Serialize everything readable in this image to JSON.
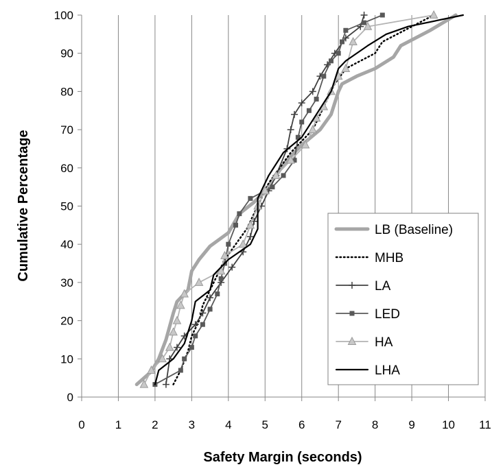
{
  "chart_data": {
    "type": "line",
    "title": "",
    "xlabel": "Safety Margin (seconds)",
    "ylabel": "Cumulative Percentage",
    "xlim": [
      0,
      11
    ],
    "ylim": [
      0,
      100
    ],
    "xticks": [
      0,
      1,
      2,
      3,
      4,
      5,
      6,
      7,
      8,
      9,
      10,
      11
    ],
    "yticks": [
      0,
      10,
      20,
      30,
      40,
      50,
      60,
      70,
      80,
      90,
      100
    ],
    "grid": "vertical",
    "legend_position": "bottom-right",
    "series": [
      {
        "name": "LB (Baseline)",
        "color": "#a6a6a6",
        "style": "thick",
        "marker": "none",
        "points": [
          [
            1.5,
            3.3
          ],
          [
            1.9,
            6.7
          ],
          [
            2.1,
            10
          ],
          [
            2.3,
            15
          ],
          [
            2.5,
            22
          ],
          [
            2.6,
            25
          ],
          [
            2.9,
            28
          ],
          [
            3.0,
            33
          ],
          [
            3.2,
            36
          ],
          [
            3.5,
            39.5
          ],
          [
            4.0,
            43
          ],
          [
            4.3,
            48
          ],
          [
            4.7,
            51
          ],
          [
            5.0,
            54
          ],
          [
            5.3,
            58
          ],
          [
            5.6,
            62
          ],
          [
            6.0,
            66
          ],
          [
            6.5,
            70
          ],
          [
            6.8,
            74
          ],
          [
            7.0,
            80
          ],
          [
            7.1,
            82
          ],
          [
            7.5,
            84
          ],
          [
            8.0,
            86
          ],
          [
            8.5,
            89
          ],
          [
            8.7,
            92
          ],
          [
            9.5,
            96
          ],
          [
            10.2,
            100
          ]
        ]
      },
      {
        "name": "MHB",
        "color": "#000000",
        "style": "dotted",
        "marker": "none",
        "points": [
          [
            2.5,
            3.3
          ],
          [
            2.7,
            7
          ],
          [
            2.9,
            12
          ],
          [
            3.0,
            16
          ],
          [
            3.2,
            20
          ],
          [
            3.3,
            24
          ],
          [
            3.5,
            28
          ],
          [
            3.7,
            32
          ],
          [
            3.9,
            36
          ],
          [
            4.2,
            40
          ],
          [
            4.5,
            44
          ],
          [
            4.7,
            48
          ],
          [
            4.9,
            52
          ],
          [
            5.1,
            56
          ],
          [
            5.4,
            60
          ],
          [
            5.7,
            64
          ],
          [
            6.0,
            67
          ],
          [
            6.3,
            70
          ],
          [
            6.5,
            74
          ],
          [
            6.7,
            78
          ],
          [
            6.9,
            82
          ],
          [
            7.2,
            86
          ],
          [
            7.6,
            88
          ],
          [
            8.0,
            90
          ],
          [
            8.2,
            93
          ],
          [
            8.8,
            96
          ],
          [
            9.6,
            100
          ]
        ]
      },
      {
        "name": "LA",
        "color": "#404040",
        "style": "solid",
        "marker": "plus",
        "points": [
          [
            2.3,
            3.3
          ],
          [
            2.4,
            10
          ],
          [
            2.6,
            13
          ],
          [
            2.8,
            16
          ],
          [
            3.1,
            19
          ],
          [
            3.3,
            22
          ],
          [
            3.5,
            26
          ],
          [
            3.8,
            30
          ],
          [
            4.1,
            34
          ],
          [
            4.4,
            38
          ],
          [
            4.6,
            42
          ],
          [
            4.7,
            46
          ],
          [
            4.9,
            50
          ],
          [
            5.1,
            54
          ],
          [
            5.3,
            58
          ],
          [
            5.6,
            65
          ],
          [
            5.7,
            70
          ],
          [
            5.8,
            74
          ],
          [
            6.0,
            77
          ],
          [
            6.3,
            80
          ],
          [
            6.5,
            84
          ],
          [
            6.7,
            87
          ],
          [
            6.9,
            90
          ],
          [
            7.2,
            94
          ],
          [
            7.6,
            97
          ],
          [
            7.7,
            100
          ]
        ]
      },
      {
        "name": "LED",
        "color": "#595959",
        "style": "solid",
        "marker": "square",
        "points": [
          [
            2.0,
            3.3
          ],
          [
            2.7,
            7
          ],
          [
            2.8,
            10
          ],
          [
            3.0,
            13
          ],
          [
            3.1,
            16
          ],
          [
            3.3,
            19
          ],
          [
            3.5,
            23
          ],
          [
            3.7,
            27
          ],
          [
            3.8,
            31
          ],
          [
            3.9,
            35
          ],
          [
            4.0,
            40
          ],
          [
            4.2,
            45
          ],
          [
            4.3,
            48
          ],
          [
            4.6,
            52
          ],
          [
            5.2,
            55
          ],
          [
            5.5,
            58
          ],
          [
            5.8,
            62
          ],
          [
            5.9,
            68
          ],
          [
            6.0,
            72
          ],
          [
            6.2,
            75
          ],
          [
            6.4,
            78
          ],
          [
            6.6,
            84
          ],
          [
            6.8,
            88
          ],
          [
            7.0,
            90
          ],
          [
            7.1,
            93
          ],
          [
            7.2,
            96
          ],
          [
            7.7,
            98
          ],
          [
            8.2,
            100
          ]
        ]
      },
      {
        "name": "HA",
        "color": "#b3b3b3",
        "style": "solid",
        "marker": "triangle",
        "points": [
          [
            1.7,
            3.3
          ],
          [
            1.9,
            7
          ],
          [
            2.2,
            10
          ],
          [
            2.4,
            13
          ],
          [
            2.5,
            17
          ],
          [
            2.6,
            20
          ],
          [
            2.7,
            24
          ],
          [
            2.8,
            27
          ],
          [
            3.2,
            30
          ],
          [
            3.8,
            33
          ],
          [
            3.9,
            37
          ],
          [
            4.4,
            40
          ],
          [
            4.6,
            45
          ],
          [
            4.8,
            50
          ],
          [
            5.0,
            54
          ],
          [
            5.3,
            58
          ],
          [
            5.7,
            62
          ],
          [
            6.1,
            66
          ],
          [
            6.3,
            70
          ],
          [
            6.4,
            73
          ],
          [
            6.6,
            76
          ],
          [
            6.8,
            80
          ],
          [
            7.0,
            84
          ],
          [
            7.2,
            86
          ],
          [
            7.4,
            93
          ],
          [
            7.8,
            97
          ],
          [
            9.6,
            100
          ]
        ]
      },
      {
        "name": "LHA",
        "color": "#000000",
        "style": "solid",
        "marker": "none",
        "points": [
          [
            2.0,
            3.3
          ],
          [
            2.1,
            7
          ],
          [
            2.5,
            10
          ],
          [
            2.8,
            14
          ],
          [
            3.0,
            20
          ],
          [
            3.1,
            25
          ],
          [
            3.5,
            28
          ],
          [
            3.6,
            32
          ],
          [
            4.0,
            36
          ],
          [
            4.6,
            40
          ],
          [
            4.8,
            44
          ],
          [
            4.8,
            52
          ],
          [
            5.1,
            58
          ],
          [
            5.5,
            64
          ],
          [
            6.0,
            68
          ],
          [
            6.4,
            74
          ],
          [
            6.8,
            80
          ],
          [
            7.0,
            86
          ],
          [
            7.2,
            88
          ],
          [
            7.8,
            92
          ],
          [
            8.3,
            95
          ],
          [
            8.9,
            97
          ],
          [
            10.4,
            100
          ]
        ]
      }
    ]
  }
}
